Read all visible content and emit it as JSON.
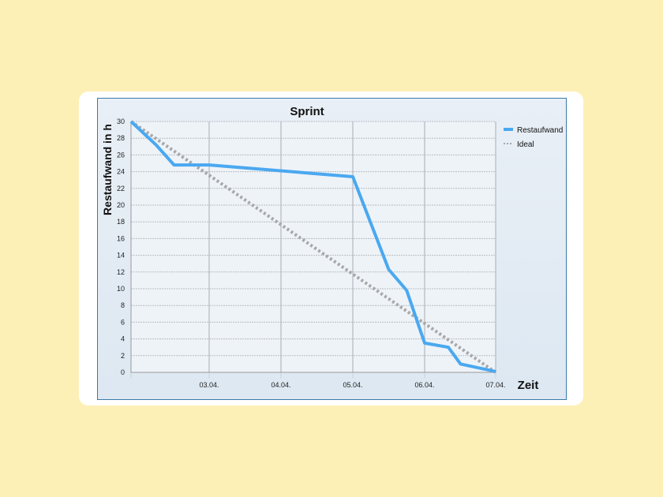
{
  "chart_data": {
    "type": "line",
    "title": "Sprint",
    "xlabel": "Zeit",
    "ylabel": "Restaufwand in h",
    "ylim": [
      0,
      30
    ],
    "yticks": [
      0,
      2,
      4,
      6,
      8,
      10,
      12,
      14,
      16,
      18,
      20,
      22,
      24,
      26,
      28,
      30
    ],
    "x_tick_labels": [
      "03.04.",
      "04.04.",
      "05.04.",
      "06.04.",
      "07.04."
    ],
    "grid": true,
    "legend_position": "right",
    "series": [
      {
        "name": "Restaufwand",
        "color": "#4aa8f0",
        "style": "solid",
        "points": [
          {
            "x": "02.04.",
            "y": 30
          },
          {
            "x": "02.04.+0.25",
            "y": 27.2
          },
          {
            "x": "02.04.+0.5",
            "y": 24.8
          },
          {
            "x": "03.04.",
            "y": 24.8
          },
          {
            "x": "05.04.",
            "y": 23.4
          },
          {
            "x": "05.04.+0.5",
            "y": 12.3
          },
          {
            "x": "05.04.+0.75",
            "y": 9.8
          },
          {
            "x": "06.04.",
            "y": 3.5
          },
          {
            "x": "06.04.+0.33",
            "y": 3.0
          },
          {
            "x": "06.04.+0.5",
            "y": 1.0
          },
          {
            "x": "07.04.",
            "y": 0.1
          }
        ]
      },
      {
        "name": "Ideal",
        "color": "#a8a8a8",
        "style": "dotted",
        "points": [
          {
            "x": "02.04.",
            "y": 30
          },
          {
            "x": "07.04.",
            "y": 0
          }
        ]
      }
    ]
  }
}
